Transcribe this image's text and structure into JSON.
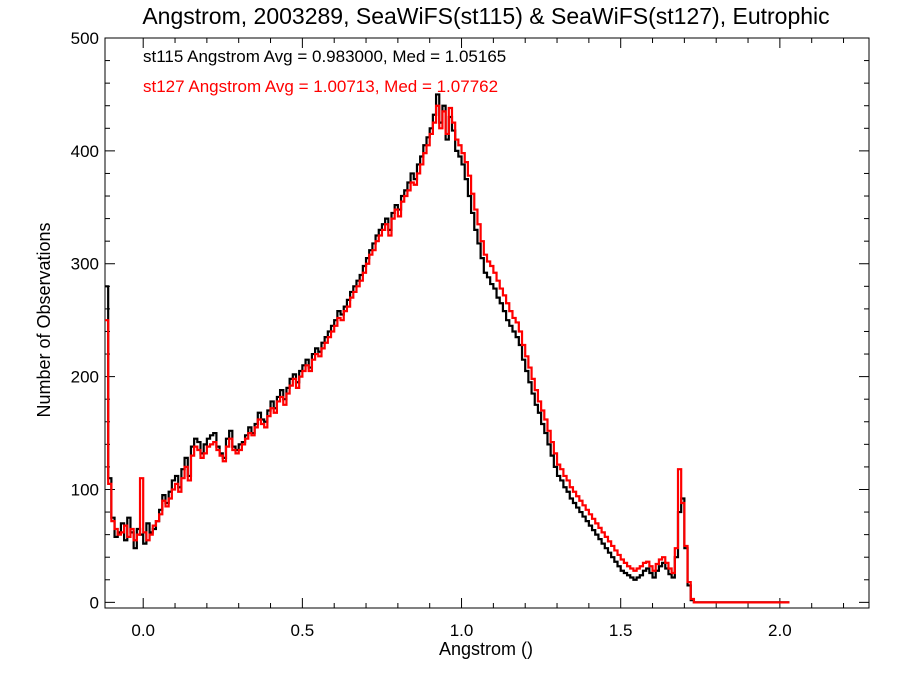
{
  "chart_data": {
    "type": "histogram-step",
    "title": "Angstrom, 2003289, SeaWiFS(st115) & SeaWiFS(st127), Eutrophic",
    "xlabel": "Angstrom ()",
    "ylabel": "Number of Observations",
    "xlim": [
      -0.12,
      2.28
    ],
    "ylim": [
      -5,
      500
    ],
    "xticks": [
      0.0,
      0.5,
      1.0,
      1.5,
      2.0
    ],
    "xtick_labels": [
      "0.0",
      "0.5",
      "1.0",
      "1.5",
      "2.0"
    ],
    "yticks": [
      0,
      100,
      200,
      300,
      400,
      500
    ],
    "ytick_labels": [
      "0",
      "100",
      "200",
      "300",
      "400",
      "500"
    ],
    "grid": false,
    "bin_width": 0.01,
    "annotations": [
      {
        "text": "st115 Angstrom Avg = 0.983000, Med = 1.05165",
        "color": "#000000"
      },
      {
        "text": "st127 Angstrom Avg = 1.00713, Med = 1.07762",
        "color": "#ff0000"
      }
    ],
    "series": [
      {
        "color": "#000000",
        "x_start": -0.12,
        "values": [
          280,
          110,
          75,
          58,
          62,
          70,
          55,
          75,
          62,
          48,
          65,
          60,
          52,
          70,
          62,
          65,
          72,
          82,
          95,
          88,
          98,
          108,
          112,
          102,
          118,
          128,
          112,
          138,
          145,
          142,
          132,
          140,
          145,
          148,
          150,
          138,
          132,
          128,
          145,
          152,
          138,
          135,
          140,
          142,
          148,
          155,
          150,
          158,
          168,
          162,
          160,
          170,
          178,
          172,
          182,
          188,
          180,
          190,
          198,
          202,
          195,
          205,
          210,
          215,
          208,
          220,
          225,
          222,
          230,
          235,
          240,
          245,
          250,
          258,
          255,
          262,
          268,
          275,
          280,
          285,
          290,
          298,
          305,
          312,
          318,
          325,
          330,
          335,
          340,
          330,
          345,
          352,
          348,
          360,
          365,
          372,
          380,
          375,
          388,
          395,
          405,
          412,
          420,
          432,
          450,
          425,
          440,
          410,
          430,
          418,
          400,
          395,
          388,
          375,
          360,
          345,
          330,
          318,
          305,
          292,
          288,
          282,
          278,
          270,
          265,
          258,
          250,
          245,
          240,
          235,
          228,
          215,
          205,
          195,
          185,
          175,
          168,
          158,
          150,
          140,
          130,
          120,
          112,
          108,
          102,
          98,
          92,
          88,
          84,
          80,
          76,
          72,
          68,
          64,
          60,
          56,
          52,
          48,
          44,
          40,
          36,
          32,
          28,
          26,
          24,
          22,
          20,
          22,
          24,
          28,
          30,
          26,
          22,
          28,
          32,
          35,
          30,
          25,
          22,
          40,
          80,
          92,
          48,
          15,
          2,
          0,
          0,
          0,
          0,
          0,
          0,
          0,
          0,
          0,
          0,
          0,
          0,
          0,
          0,
          0,
          0,
          0,
          0,
          0,
          0,
          0,
          0,
          0,
          0,
          0,
          0,
          0,
          0,
          0,
          0
        ]
      },
      {
        "color": "#ff0000",
        "x_start": -0.12,
        "values": [
          250,
          105,
          72,
          65,
          60,
          62,
          68,
          58,
          65,
          55,
          60,
          110,
          62,
          55,
          60,
          68,
          72,
          78,
          90,
          85,
          92,
          100,
          105,
          98,
          110,
          120,
          108,
          130,
          138,
          135,
          128,
          132,
          138,
          140,
          142,
          135,
          130,
          125,
          138,
          145,
          135,
          132,
          135,
          140,
          145,
          150,
          148,
          155,
          162,
          158,
          155,
          165,
          172,
          168,
          178,
          182,
          175,
          185,
          192,
          198,
          190,
          200,
          205,
          210,
          205,
          215,
          220,
          218,
          225,
          230,
          235,
          240,
          245,
          252,
          250,
          258,
          262,
          270,
          275,
          280,
          285,
          292,
          300,
          308,
          312,
          320,
          325,
          330,
          335,
          325,
          340,
          348,
          342,
          355,
          360,
          365,
          372,
          370,
          380,
          388,
          398,
          405,
          415,
          425,
          440,
          420,
          435,
          415,
          438,
          425,
          410,
          405,
          398,
          390,
          378,
          362,
          348,
          335,
          320,
          308,
          302,
          298,
          292,
          285,
          278,
          272,
          265,
          258,
          252,
          248,
          240,
          228,
          218,
          208,
          198,
          188,
          178,
          170,
          162,
          152,
          142,
          132,
          122,
          118,
          112,
          108,
          102,
          98,
          94,
          90,
          86,
          82,
          78,
          74,
          70,
          66,
          62,
          58,
          54,
          50,
          46,
          42,
          38,
          35,
          32,
          30,
          28,
          30,
          32,
          35,
          36,
          32,
          28,
          34,
          38,
          40,
          35,
          30,
          26,
          48,
          118,
          88,
          50,
          18,
          3,
          0,
          0,
          0,
          0,
          0,
          0,
          0,
          0,
          0,
          0,
          0,
          0,
          0,
          0,
          0,
          0,
          0,
          0,
          0,
          0,
          0,
          0,
          0,
          0,
          0,
          0,
          0,
          0,
          0,
          0
        ]
      }
    ]
  }
}
